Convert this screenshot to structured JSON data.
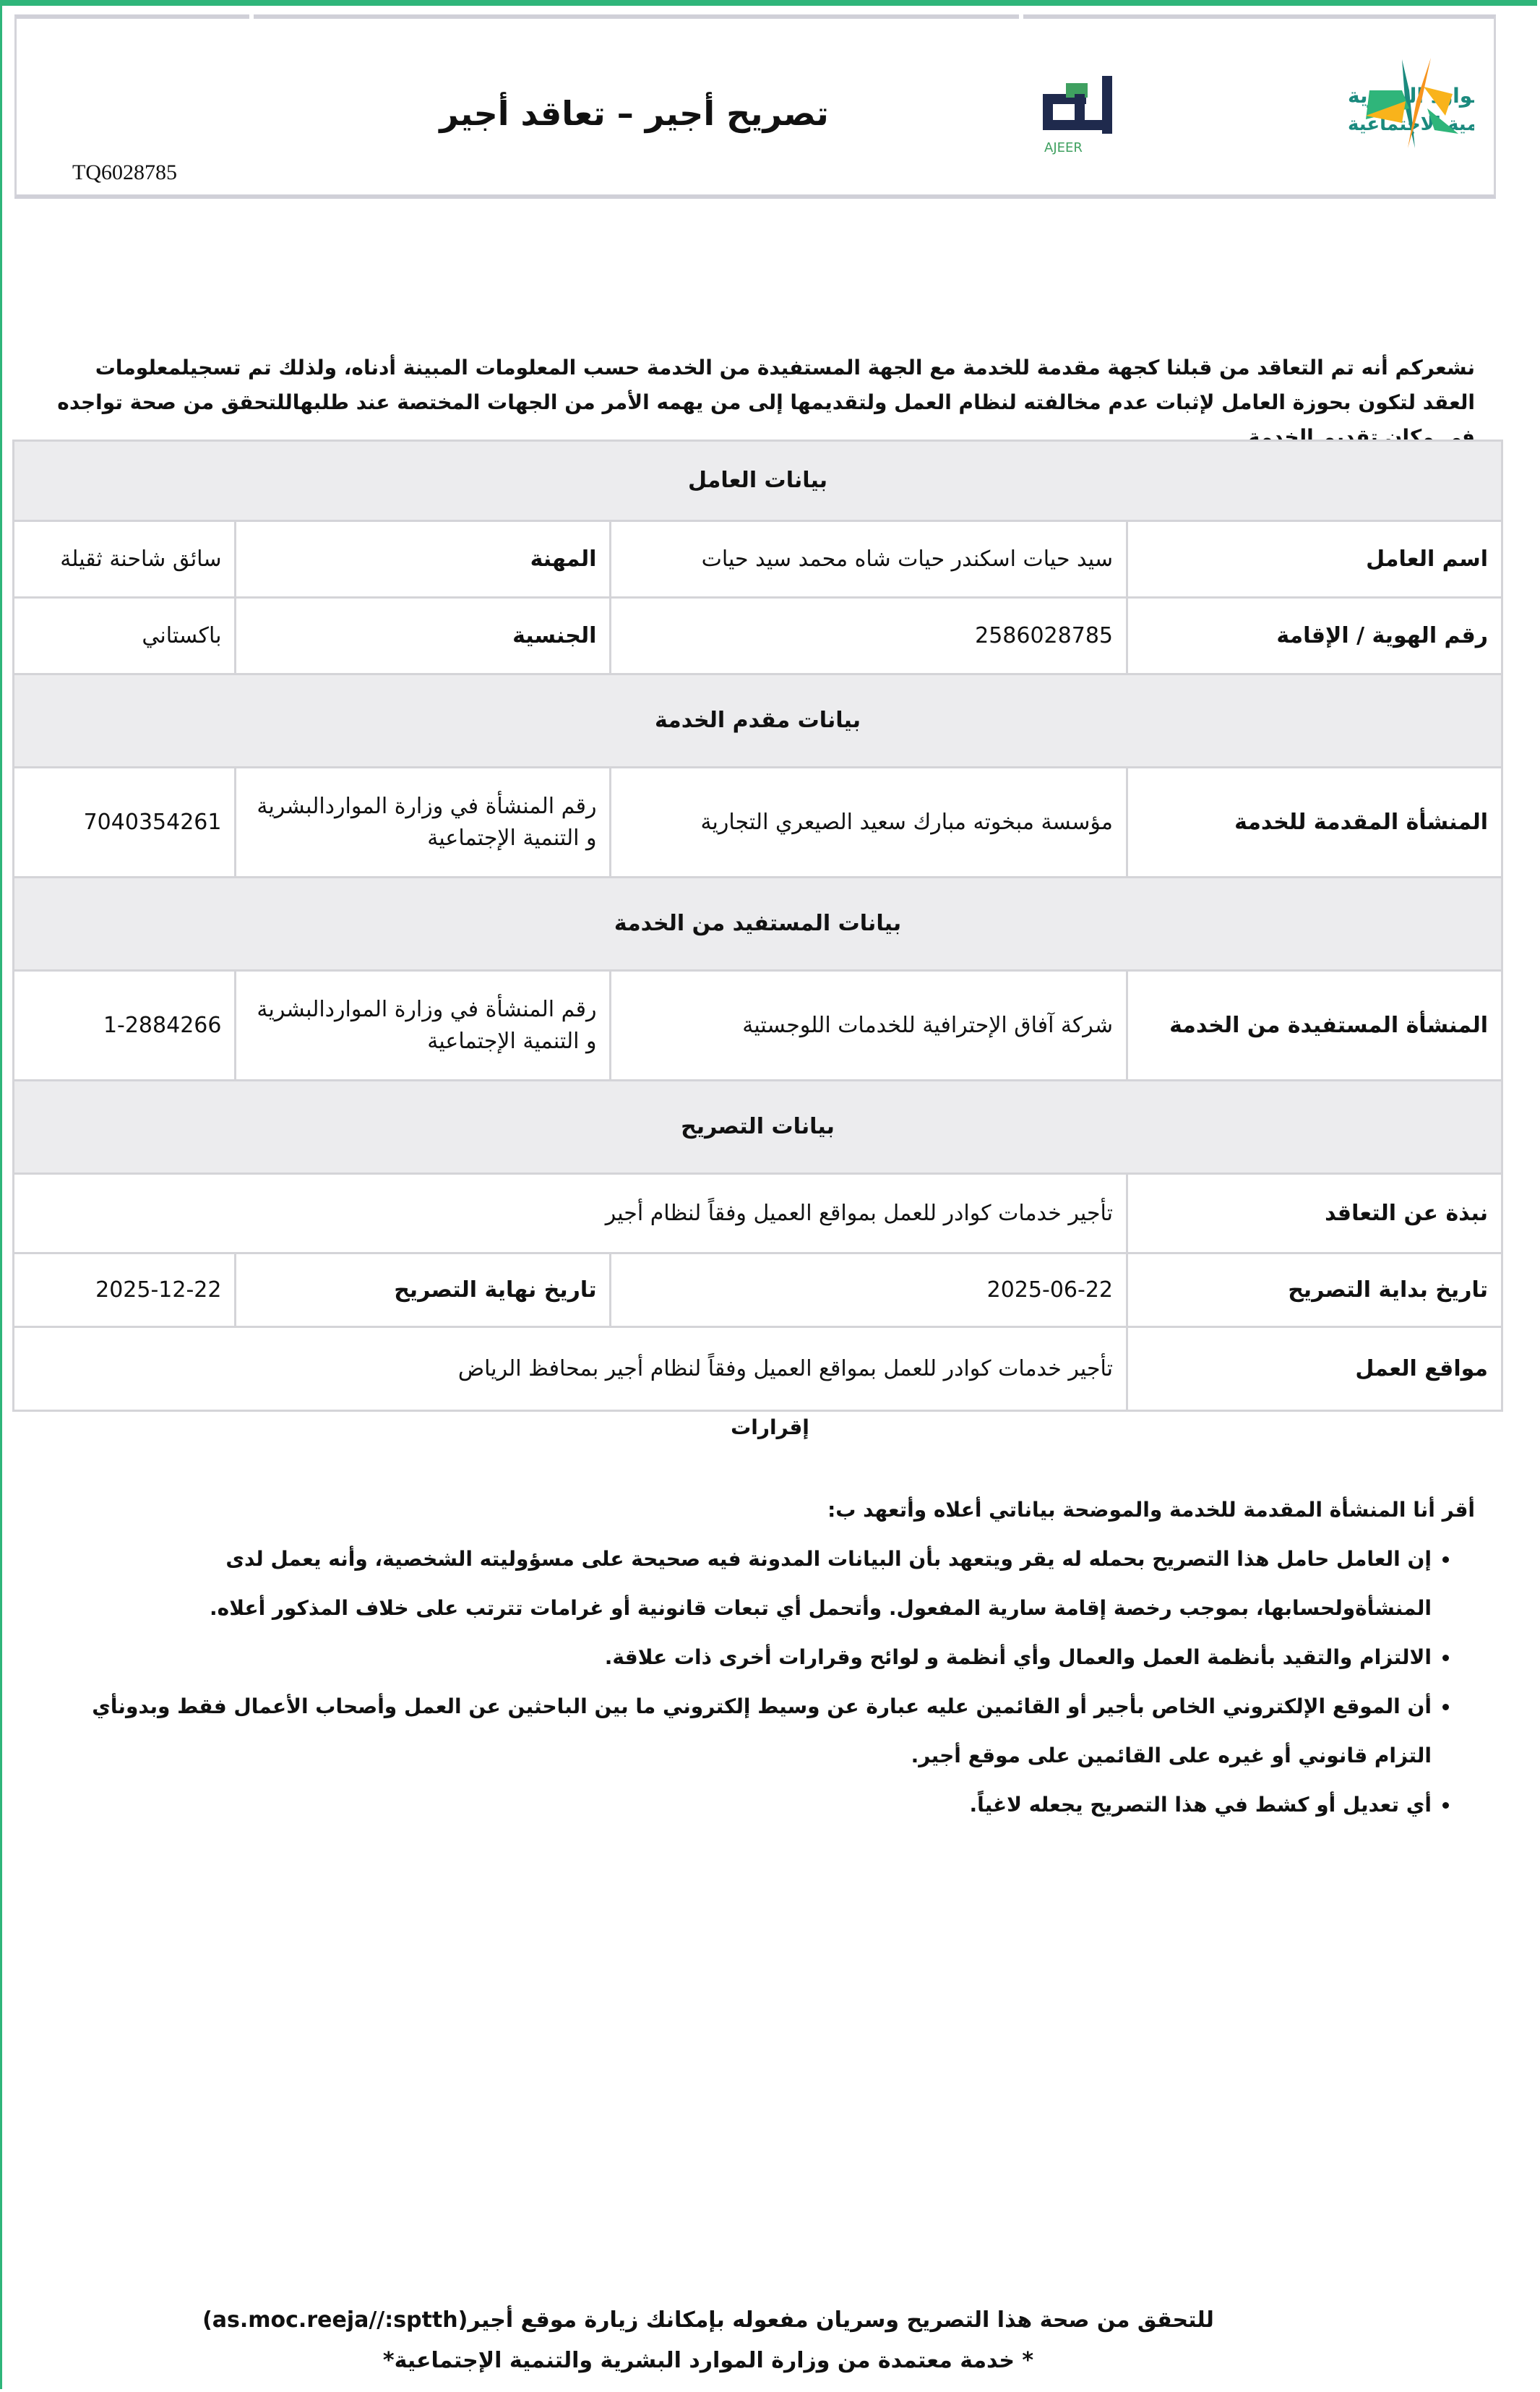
{
  "header": {
    "title": "تصريح أجير –  تعاقد أجير",
    "reference": "TQ6028785",
    "ajeer_logo_text": "أجير",
    "ajeer_logo_latin": "AJEER",
    "ministry_logo_line1": "الموارد البشرية",
    "ministry_logo_line2": "والتنمية الاجتماعية",
    "colors": {
      "frame": "#2fb57a",
      "ajeer_navy": "#1f2a4d",
      "ajeer_green": "#3fa060",
      "ministry_teal": "#1b8a7e",
      "ministry_orange": "#f7941d"
    }
  },
  "intro": "نشعركم أنه تم التعاقد من قبلنا كجهة مقدمة للخدمة مع الجهة المستفيدة من الخدمة حسب المعلومات المبينة أدناه، ولذلك تم تسجيلمعلومات العقد لتكون بحوزة العامل لإثبات عدم مخالفته لنظام العمل ولتقديمها إلى من يهمه الأمر من الجهات المختصة عند طلبهاللتحقق من صحة تواجده في مكان تقديم الخدمة",
  "worker": {
    "section": "بيانات العامل",
    "name_label": "اسم العامل",
    "name": "سيد حيات اسكندر حيات شاه محمد سيد حيات",
    "profession_label": "المهنة",
    "profession": "سائق شاحنة ثقيلة",
    "id_label": "رقم الهوية / الإقامة",
    "id": "2586028785",
    "nationality_label": "الجنسية",
    "nationality": "باكستاني"
  },
  "provider": {
    "section": "بيانات مقدم الخدمة",
    "entity_label": "المنشأة المقدمة للخدمة",
    "entity": "مؤسسة مبخوته مبارك سعيد الصيعري التجارية",
    "number_label": "رقم المنشأة في وزارة المواردالبشرية و التنمية الإجتماعية",
    "number": "7040354261"
  },
  "beneficiary": {
    "section": "بيانات المستفيد من الخدمة",
    "entity_label": "المنشأة المستفيدة من الخدمة",
    "entity": "شركة آفاق الإحترافية للخدمات اللوجستية",
    "number_label": "رقم المنشأة في وزارة المواردالبشرية و التنمية الإجتماعية",
    "number": "1-2884266"
  },
  "permit": {
    "section": "بيانات التصريح",
    "summary_label": "نبذة عن التعاقد",
    "summary": "تأجير خدمات كوادر للعمل بمواقع العميل وفقاً لنظام أجير",
    "start_label": "تاريخ بداية التصريح",
    "start": "2025-06-22",
    "end_label": "تاريخ نهاية التصريح",
    "end": "2025-12-22",
    "locations_label": "مواقع العمل",
    "locations": "تأجير خدمات كوادر للعمل بمواقع العميل وفقاً لنظام أجير بمحافظ الرياض"
  },
  "declarations": {
    "title": "إقرارات",
    "lead": "أقر أنا المنشأة المقدمة للخدمة والموضحة بياناتي أعلاه وأتعهد ب:",
    "items": [
      "إن العامل حامل هذا التصريح بحمله له يقر ويتعهد بأن البيانات المدونة فيه صحيحة على مسؤوليته الشخصية، وأنه يعمل لدى المنشأةولحسابها، بموجب رخصة إقامة سارية المفعول. وأتحمل أي تبعات قانونية أو غرامات تترتب على خلاف المذكور أعلاه.",
      "الالتزام والتقيد بأنظمة العمل والعمال وأي أنظمة و لوائح وقرارات أخرى ذات علاقة.",
      "أن الموقع الإلكتروني الخاص بأجير أو القائمين عليه عبارة عن وسيط إلكتروني ما بين الباحثين عن العمل وأصحاب الأعمال فقط وبدونأي التزام قانوني أو غيره على القائمين على موقع أجير.",
      "أي تعديل أو كشط في هذا التصريح يجعله لاغياً."
    ]
  },
  "footer": {
    "verify": "للتحقق من صحة هذا التصريح وسريان مفعوله بإمكانك زيارة موقع أجير(as.moc.reeja//:sptth)",
    "note": "* خدمة معتمدة من وزارة الموارد البشرية والتنمية الإجتماعية*"
  }
}
